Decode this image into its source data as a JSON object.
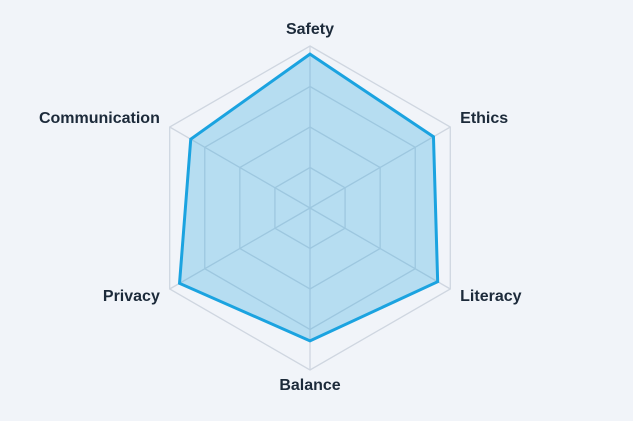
{
  "chart_data": {
    "type": "radar",
    "categories": [
      "Safety",
      "Ethics",
      "Literacy",
      "Balance",
      "Privacy",
      "Communication"
    ],
    "values": [
      95,
      88,
      91,
      82,
      93,
      85
    ],
    "color": "#1ba3e0",
    "ylim": [
      0,
      100
    ],
    "yticks": [
      25,
      50,
      75,
      100
    ],
    "grid": true
  }
}
